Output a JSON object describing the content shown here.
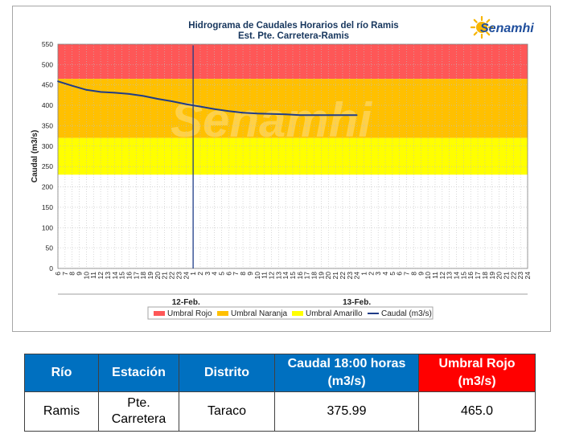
{
  "chart_data": {
    "type": "line",
    "title": "Hidrograma de Caudales Horarios del río Ramis",
    "subtitle": "Est. Pte. Carretera-Ramis",
    "ylabel": "Caudal (m3/s)",
    "xlabel": "",
    "ylim": [
      0,
      550
    ],
    "yticks": [
      0,
      50,
      100,
      150,
      200,
      250,
      300,
      350,
      400,
      450,
      500,
      550
    ],
    "x_tick_labels": [
      "6",
      "7",
      "8",
      "9",
      "10",
      "11",
      "12",
      "13",
      "14",
      "15",
      "16",
      "17",
      "18",
      "19",
      "20",
      "21",
      "22",
      "23",
      "24",
      "1",
      "2",
      "3",
      "4",
      "5",
      "6",
      "7",
      "8",
      "9",
      "10",
      "11",
      "12",
      "13",
      "14",
      "15",
      "16",
      "17",
      "18",
      "19",
      "20",
      "21",
      "22",
      "23",
      "24",
      "1",
      "2",
      "3",
      "4",
      "5",
      "6",
      "7",
      "8",
      "9",
      "10",
      "11",
      "12",
      "13",
      "14",
      "15",
      "16",
      "17",
      "18",
      "19",
      "20",
      "21",
      "22",
      "23",
      "24"
    ],
    "day_labels": [
      "12-Feb.",
      "13-Feb."
    ],
    "day_label_positions": [
      18,
      42
    ],
    "bands": [
      {
        "name": "Umbral Rojo",
        "from": 465,
        "to": 550,
        "color": "#fe5757"
      },
      {
        "name": "Umbral Naranja",
        "from": 320,
        "to": 465,
        "color": "#ffc000"
      },
      {
        "name": "Umbral Amarillo",
        "from": 230,
        "to": 320,
        "color": "#ffff00"
      }
    ],
    "series": [
      {
        "name": "Caudal (m3/s)",
        "color": "#1f3c88",
        "x": [
          0,
          2,
          4,
          6,
          8,
          10,
          12,
          14,
          16,
          18,
          20,
          22,
          24,
          26,
          28,
          30,
          32,
          34,
          36,
          38,
          40,
          42
        ],
        "values": [
          459,
          448,
          438,
          433,
          431,
          428,
          423,
          416,
          410,
          403,
          397,
          391,
          386,
          382,
          380,
          379,
          378,
          376,
          376,
          376,
          376,
          376
        ]
      }
    ],
    "vline": {
      "x": 19,
      "bottom": 0,
      "top": 547
    },
    "grid": true,
    "legend_position": "bottom"
  },
  "colors": {
    "table_header": "#0070c0",
    "table_header_red": "#ff0000"
  },
  "logo": {
    "text": "Senamhi"
  },
  "watermark": {
    "text": "Senamhi"
  },
  "table": {
    "headers": [
      "Río",
      "Estación",
      "Distrito",
      "Caudal  18:00 horas (m3/s)",
      "Umbral Rojo (m3/s)"
    ],
    "row": [
      "Ramis",
      "Pte. Carretera",
      "Taraco",
      "375.99",
      "465.0"
    ]
  }
}
